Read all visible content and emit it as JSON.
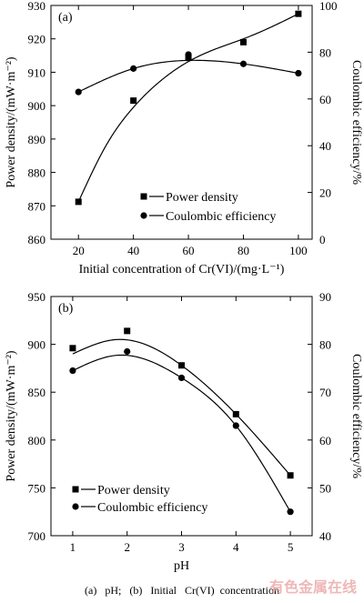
{
  "caption": "(a)   pH;   (b)   Initial   Cr(VI)  concentration",
  "watermark": "有色金属在线",
  "chart_data": [
    {
      "type": "line",
      "panel_label": "(a)",
      "xlabel": "Initial concentration of Cr(VI)/(mg·L⁻¹)",
      "ylabel": "Power density/(mW·m⁻²)",
      "y2label": "Coulombic efficiency/%",
      "xlim": [
        10,
        105
      ],
      "ylim": [
        860,
        930
      ],
      "y2lim": [
        0,
        100
      ],
      "xticks": [
        20,
        40,
        60,
        80,
        100
      ],
      "yticks": [
        860,
        870,
        880,
        890,
        900,
        910,
        920,
        930
      ],
      "y2ticks": [
        0,
        20,
        40,
        60,
        80,
        100
      ],
      "legend": {
        "position": "bottom-right"
      },
      "series": [
        {
          "name": "Power density",
          "axis": "left",
          "marker": "square",
          "x": [
            20,
            40,
            60,
            80,
            100
          ],
          "values": [
            871.2,
            901.5,
            914.3,
            919.0,
            927.5
          ]
        },
        {
          "name": "Coulombic efficiency",
          "axis": "right",
          "marker": "circle",
          "x": [
            20,
            40,
            60,
            80,
            100
          ],
          "values": [
            63,
            73,
            79,
            75,
            71
          ]
        }
      ]
    },
    {
      "type": "line",
      "panel_label": "(b)",
      "xlabel": "pH",
      "ylabel": "Power density/(mW·m⁻²)",
      "y2label": "Coulombic efficiency/%",
      "xlim": [
        0.6,
        5.4
      ],
      "ylim": [
        700,
        950
      ],
      "y2lim": [
        40,
        90
      ],
      "xticks": [
        1,
        2,
        3,
        4,
        5
      ],
      "yticks": [
        700,
        750,
        800,
        850,
        900,
        950
      ],
      "y2ticks": [
        40,
        50,
        60,
        70,
        80,
        90
      ],
      "legend": {
        "position": "bottom-left"
      },
      "series": [
        {
          "name": "Power density",
          "axis": "left",
          "marker": "square",
          "x": [
            1,
            2,
            3,
            4,
            5
          ],
          "values": [
            896,
            914,
            878,
            827,
            763
          ]
        },
        {
          "name": "Coulombic efficiency",
          "axis": "right",
          "marker": "circle",
          "x": [
            1,
            2,
            3,
            4,
            5
          ],
          "values": [
            74.5,
            78.5,
            73,
            63,
            45
          ]
        }
      ]
    }
  ]
}
